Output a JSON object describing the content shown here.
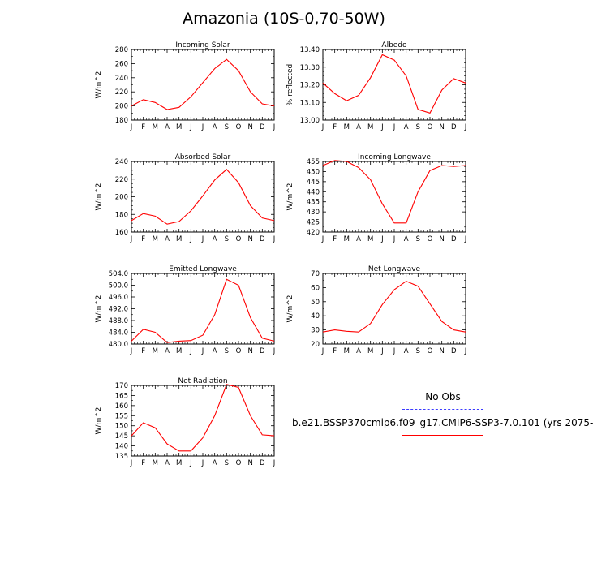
{
  "title": "Amazonia (10S-0,70-50W)",
  "months": [
    "J",
    "F",
    "M",
    "A",
    "M",
    "J",
    "J",
    "A",
    "S",
    "O",
    "N",
    "D",
    "J"
  ],
  "colors": {
    "model": "#ff0000",
    "obs": "#3b3bff"
  },
  "legend": {
    "no_obs": "No Obs",
    "run": "b.e21.BSSP370cmip6.f09_g17.CMIP6-SSP3-7.0.101 (yrs 2075-"
  },
  "chart_data": [
    {
      "type": "line",
      "title": "Incoming Solar",
      "ylabel": "W/m^2",
      "ylim": [
        180,
        280
      ],
      "yticks": [
        "180",
        "200",
        "220",
        "240",
        "260",
        "280"
      ],
      "values": [
        200,
        209,
        205,
        195,
        198,
        213,
        233,
        253,
        266,
        250,
        220,
        203,
        200
      ]
    },
    {
      "type": "line",
      "title": "Albedo",
      "ylabel": "% reflected",
      "ylim": [
        13.0,
        13.4
      ],
      "yticks": [
        "13.00",
        "13.10",
        "13.20",
        "13.30",
        "13.40"
      ],
      "values": [
        13.21,
        13.15,
        13.11,
        13.14,
        13.24,
        13.37,
        13.34,
        13.25,
        13.06,
        13.04,
        13.17,
        13.235,
        13.21
      ]
    },
    {
      "type": "line",
      "title": "Absorbed Solar",
      "ylabel": "W/m^2",
      "ylim": [
        160,
        240
      ],
      "yticks": [
        "160",
        "180",
        "200",
        "220",
        "240"
      ],
      "values": [
        173,
        181,
        178,
        169,
        172,
        184,
        201,
        219,
        231,
        216,
        190,
        176,
        173
      ]
    },
    {
      "type": "line",
      "title": "Incoming Longwave",
      "ylabel": "W/m^2",
      "ylim": [
        420,
        455
      ],
      "yticks": [
        "420",
        "425",
        "430",
        "435",
        "440",
        "445",
        "450",
        "455"
      ],
      "values": [
        453,
        455.5,
        455,
        452,
        446,
        434,
        424.5,
        424.5,
        440,
        450.5,
        453,
        452.5,
        453
      ]
    },
    {
      "type": "line",
      "title": "Emitted Longwave",
      "ylabel": "W/m^2",
      "ylim": [
        480,
        504
      ],
      "yticks": [
        "480.0",
        "484.0",
        "488.0",
        "492.0",
        "496.0",
        "500.0",
        "504.0"
      ],
      "values": [
        481,
        485,
        484,
        480.5,
        481,
        481.2,
        483,
        490,
        502,
        500,
        489,
        482,
        481
      ]
    },
    {
      "type": "line",
      "title": "Net Longwave",
      "ylabel": "W/m^2",
      "ylim": [
        20,
        70
      ],
      "yticks": [
        "20",
        "30",
        "40",
        "50",
        "60",
        "70"
      ],
      "values": [
        28.5,
        30,
        29,
        28.5,
        34.5,
        48,
        58.5,
        64.5,
        61,
        48.5,
        36,
        30,
        28.5
      ]
    },
    {
      "type": "line",
      "title": "Net Radiation",
      "ylabel": "W/m^2",
      "ylim": [
        135,
        170
      ],
      "yticks": [
        "135",
        "140",
        "145",
        "150",
        "155",
        "160",
        "165",
        "170"
      ],
      "values": [
        145,
        151.5,
        149,
        141,
        137.5,
        137.5,
        144,
        155,
        170.5,
        169,
        155,
        145.5,
        145
      ]
    }
  ]
}
